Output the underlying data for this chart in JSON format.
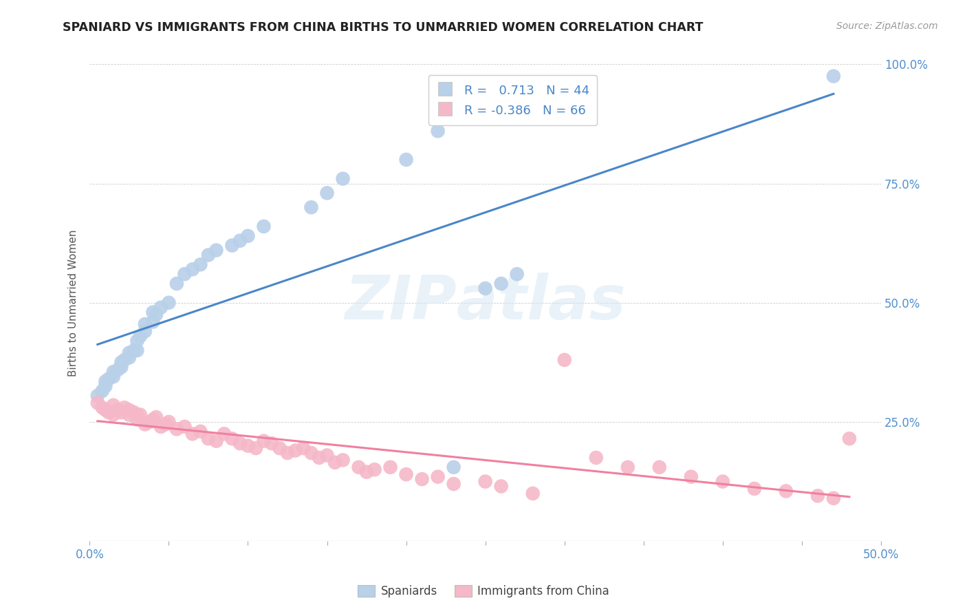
{
  "title": "SPANIARD VS IMMIGRANTS FROM CHINA BIRTHS TO UNMARRIED WOMEN CORRELATION CHART",
  "source": "Source: ZipAtlas.com",
  "ylabel": "Births to Unmarried Women",
  "xlim": [
    0.0,
    0.5
  ],
  "ylim": [
    0.0,
    1.0
  ],
  "blue_R": 0.713,
  "blue_N": 44,
  "pink_R": -0.386,
  "pink_N": 66,
  "blue_color": "#b8d0e8",
  "pink_color": "#f5b8c8",
  "blue_line_color": "#4a86c8",
  "pink_line_color": "#f080a0",
  "blue_scatter_x": [
    0.005,
    0.008,
    0.01,
    0.01,
    0.012,
    0.015,
    0.015,
    0.018,
    0.02,
    0.02,
    0.022,
    0.025,
    0.025,
    0.028,
    0.03,
    0.03,
    0.032,
    0.035,
    0.035,
    0.04,
    0.04,
    0.042,
    0.045,
    0.05,
    0.055,
    0.06,
    0.065,
    0.07,
    0.075,
    0.08,
    0.09,
    0.095,
    0.1,
    0.11,
    0.14,
    0.15,
    0.16,
    0.2,
    0.22,
    0.23,
    0.25,
    0.26,
    0.27,
    0.47
  ],
  "blue_scatter_y": [
    0.305,
    0.315,
    0.325,
    0.335,
    0.34,
    0.345,
    0.355,
    0.36,
    0.365,
    0.375,
    0.38,
    0.385,
    0.395,
    0.4,
    0.4,
    0.42,
    0.43,
    0.44,
    0.455,
    0.46,
    0.48,
    0.475,
    0.49,
    0.5,
    0.54,
    0.56,
    0.57,
    0.58,
    0.6,
    0.61,
    0.62,
    0.63,
    0.64,
    0.66,
    0.7,
    0.73,
    0.76,
    0.8,
    0.86,
    0.155,
    0.53,
    0.54,
    0.56,
    0.975
  ],
  "pink_scatter_x": [
    0.005,
    0.008,
    0.01,
    0.012,
    0.015,
    0.015,
    0.018,
    0.02,
    0.022,
    0.025,
    0.025,
    0.028,
    0.03,
    0.03,
    0.032,
    0.035,
    0.038,
    0.04,
    0.042,
    0.045,
    0.048,
    0.05,
    0.055,
    0.06,
    0.065,
    0.07,
    0.075,
    0.08,
    0.085,
    0.09,
    0.095,
    0.1,
    0.105,
    0.11,
    0.115,
    0.12,
    0.125,
    0.13,
    0.135,
    0.14,
    0.145,
    0.15,
    0.155,
    0.16,
    0.17,
    0.175,
    0.18,
    0.19,
    0.2,
    0.21,
    0.22,
    0.23,
    0.25,
    0.26,
    0.28,
    0.3,
    0.32,
    0.34,
    0.36,
    0.38,
    0.4,
    0.42,
    0.44,
    0.46,
    0.47,
    0.48
  ],
  "pink_scatter_y": [
    0.29,
    0.28,
    0.275,
    0.27,
    0.285,
    0.265,
    0.275,
    0.27,
    0.28,
    0.275,
    0.265,
    0.27,
    0.265,
    0.255,
    0.265,
    0.245,
    0.25,
    0.255,
    0.26,
    0.24,
    0.245,
    0.25,
    0.235,
    0.24,
    0.225,
    0.23,
    0.215,
    0.21,
    0.225,
    0.215,
    0.205,
    0.2,
    0.195,
    0.21,
    0.205,
    0.195,
    0.185,
    0.19,
    0.195,
    0.185,
    0.175,
    0.18,
    0.165,
    0.17,
    0.155,
    0.145,
    0.15,
    0.155,
    0.14,
    0.13,
    0.135,
    0.12,
    0.125,
    0.115,
    0.1,
    0.38,
    0.175,
    0.155,
    0.155,
    0.135,
    0.125,
    0.11,
    0.105,
    0.095,
    0.09,
    0.215
  ]
}
